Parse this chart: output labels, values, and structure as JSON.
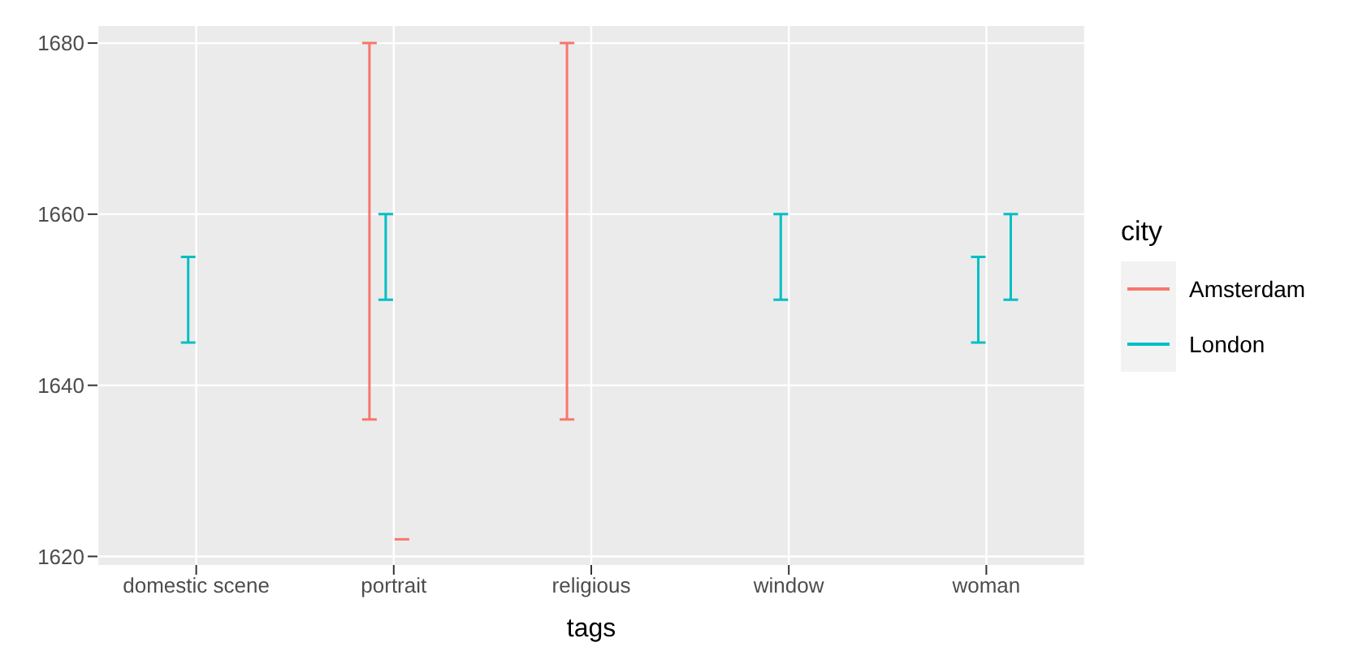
{
  "chart_data": {
    "type": "bar",
    "xlabel": "tags",
    "legend_title": "city",
    "legend": "right",
    "grid": true,
    "categories": [
      "domestic scene",
      "portrait",
      "religious",
      "window",
      "woman"
    ],
    "ylim": [
      1619,
      1682
    ],
    "yticks": [
      1620,
      1640,
      1660,
      1680
    ],
    "series": [
      {
        "name": "Amsterdam",
        "color": "#f8766d",
        "base": [
          null,
          1636,
          1636,
          null,
          null
        ],
        "values": [
          null,
          44,
          44,
          null,
          null
        ]
      },
      {
        "name": "London",
        "color": "#00bfc4",
        "base": [
          1645,
          1650,
          null,
          1650,
          1645
        ],
        "values": [
          10,
          10,
          null,
          10,
          10
        ]
      },
      {
        "color": "#f8766d",
        "base": [
          null,
          1622,
          null,
          null,
          null
        ],
        "values": [
          null,
          0,
          null,
          null,
          null
        ]
      },
      {
        "color": "#00bfc4",
        "base": [
          null,
          null,
          null,
          null,
          1650
        ],
        "values": [
          null,
          null,
          null,
          null,
          10
        ]
      }
    ]
  }
}
